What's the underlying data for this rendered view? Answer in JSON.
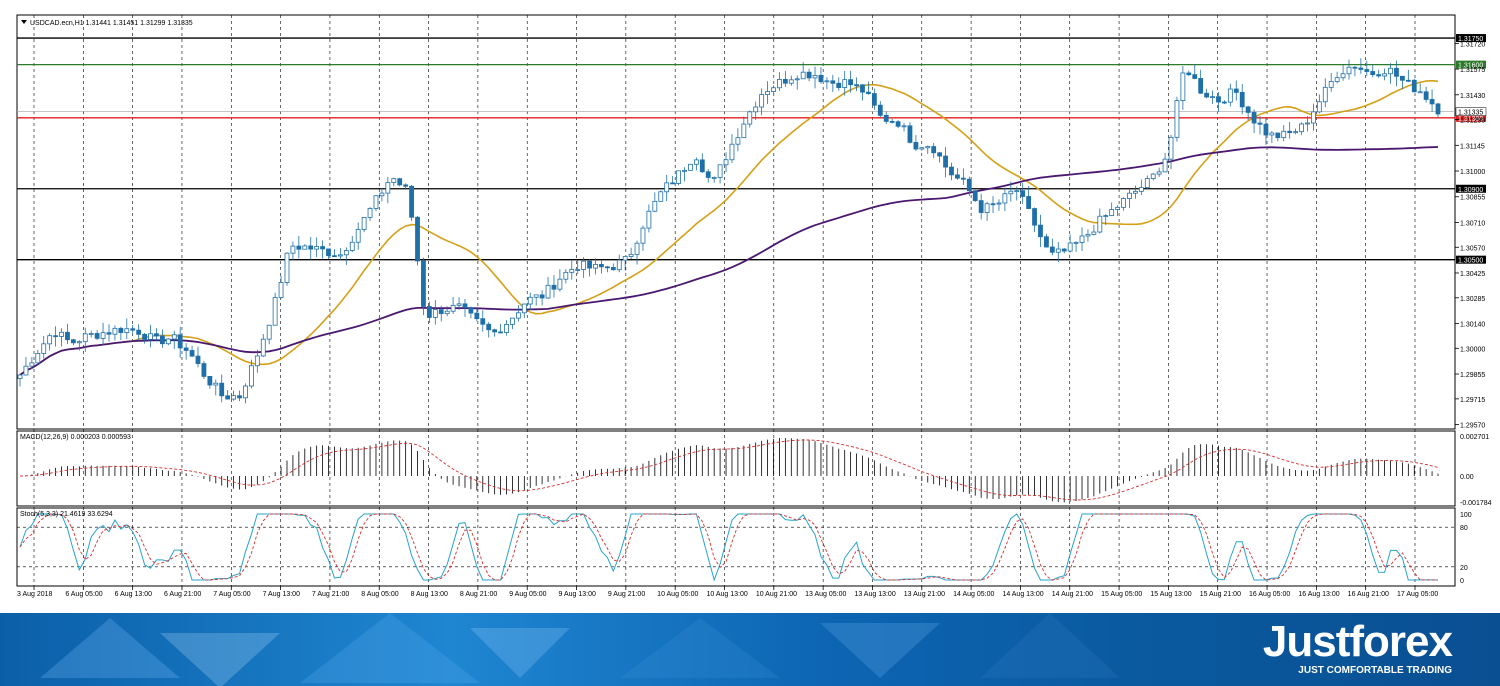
{
  "main_title": "USDCAD.ecn,H1  1.31441 1.31451 1.31299 1.31335",
  "macd_title": "MACD(12,26,9) 0.000203 0.000593",
  "stoch_title": "Stoch(5,3,3) 21.4619 33.6294",
  "brand": {
    "name": "Justforex",
    "tagline": "JUST COMFORTABLE TRADING"
  },
  "chart_data": {
    "type": "candlestick",
    "price_axis_ticks": [
      "1.31720",
      "1.31575",
      "1.31430",
      "1.31290",
      "1.31145",
      "1.31000",
      "1.30855",
      "1.30710",
      "1.30570",
      "1.30425",
      "1.30285",
      "1.30140",
      "1.30000",
      "1.29855",
      "1.29715",
      "1.29570"
    ],
    "time_axis_ticks": [
      "3 Aug 2018",
      "6 Aug 05:00",
      "6 Aug 13:00",
      "6 Aug 21:00",
      "7 Aug 05:00",
      "7 Aug 13:00",
      "7 Aug 21:00",
      "8 Aug 05:00",
      "8 Aug 13:00",
      "8 Aug 21:00",
      "9 Aug 05:00",
      "9 Aug 13:00",
      "9 Aug 21:00",
      "10 Aug 05:00",
      "10 Aug 13:00",
      "10 Aug 21:00",
      "13 Aug 05:00",
      "13 Aug 13:00",
      "13 Aug 21:00",
      "14 Aug 05:00",
      "14 Aug 13:00",
      "14 Aug 21:00",
      "15 Aug 05:00",
      "15 Aug 13:00",
      "15 Aug 21:00",
      "16 Aug 05:00",
      "16 Aug 13:00",
      "16 Aug 21:00",
      "17 Aug 05:00"
    ],
    "horizontal_levels": [
      {
        "label": "1.31750",
        "value": 1.3175,
        "color": "#000000"
      },
      {
        "label": "1.31600",
        "value": 1.316,
        "color": "#2a7a2a"
      },
      {
        "label": "1.31300",
        "value": 1.313,
        "color": "#e81b1b"
      },
      {
        "label": "1.30900",
        "value": 1.309,
        "color": "#000000"
      },
      {
        "label": "1.30500",
        "value": 1.305,
        "color": "#000000"
      }
    ],
    "current_price": {
      "label": "1.31335",
      "value": 1.31335
    },
    "price_range": [
      1.29545,
      1.3188
    ],
    "candle_anchors": [
      1.2985,
      1.2998,
      1.301,
      1.3003,
      1.3007,
      1.3009,
      1.3011,
      1.301,
      1.3004,
      1.3006,
      1.2998,
      1.2984,
      1.2973,
      1.2973,
      1.2995,
      1.3022,
      1.3058,
      1.3057,
      1.3055,
      1.3053,
      1.3067,
      1.3082,
      1.3097,
      1.3088,
      1.3018,
      1.3022,
      1.3023,
      1.3015,
      1.3008,
      1.3016,
      1.3027,
      1.303,
      1.304,
      1.3047,
      1.3045,
      1.3046,
      1.305,
      1.3072,
      1.3088,
      1.3098,
      1.311,
      1.3092,
      1.3112,
      1.313,
      1.3145,
      1.315,
      1.3155,
      1.3155,
      1.315,
      1.315,
      1.3145,
      1.313,
      1.3128,
      1.3115,
      1.3115,
      1.31,
      1.3092,
      1.3078,
      1.3082,
      1.309,
      1.3072,
      1.3052,
      1.3055,
      1.3062,
      1.3072,
      1.308,
      1.3088,
      1.3095,
      1.311,
      1.316,
      1.3145,
      1.314,
      1.3145,
      1.313,
      1.312,
      1.312,
      1.3125,
      1.314,
      1.3155,
      1.316,
      1.3155,
      1.3158,
      1.315,
      1.3145,
      1.3135
    ],
    "ma_fast_color": "#d4a017",
    "ma_slow_color": "#4b1870",
    "candle_color": "#1f6fa8",
    "macd_axis": [
      "0.002701",
      "0.00",
      "-0.001784"
    ],
    "stoch_axis": [
      "100",
      "80",
      "20",
      "0"
    ]
  }
}
